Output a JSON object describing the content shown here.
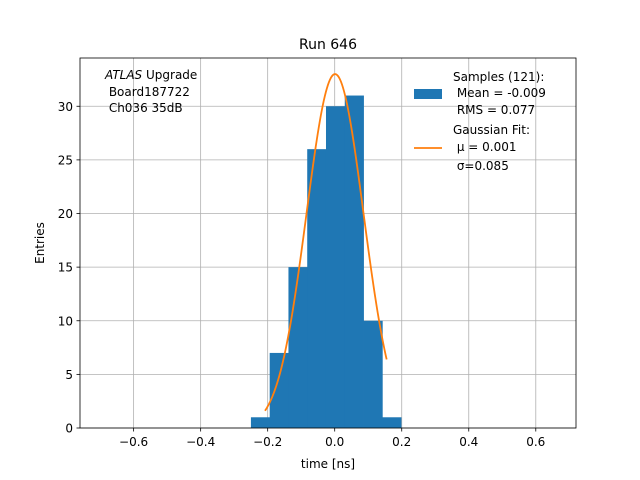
{
  "chart_data": {
    "type": "bar",
    "title": "Run 646",
    "xlabel": "time [ns]",
    "ylabel": "Entries",
    "xlim": [
      -0.76,
      0.72
    ],
    "ylim": [
      0,
      34.5
    ],
    "xticks": [
      -0.6,
      -0.4,
      -0.2,
      0.0,
      0.2,
      0.4,
      0.6
    ],
    "xtick_labels": [
      "−0.6",
      "−0.4",
      "−0.2",
      "0.0",
      "0.2",
      "0.4",
      "0.6"
    ],
    "yticks": [
      0,
      5,
      10,
      15,
      20,
      25,
      30
    ],
    "grid": true,
    "annotation": {
      "line1_italic": "ATLAS",
      "line1_rest": " Upgrade",
      "line2": " Board187722",
      "line3": " Ch036 35dB"
    },
    "histogram": {
      "name": "Samples (121):",
      "color": "#1f77b4",
      "bin_edges": [
        -0.25,
        -0.194,
        -0.138,
        -0.082,
        -0.026,
        0.03,
        0.086,
        0.142,
        0.198
      ],
      "counts": [
        1,
        7,
        15,
        26,
        30,
        31,
        10,
        1
      ]
    },
    "gaussian_fit": {
      "name": "Gaussian Fit:",
      "color": "#ff7f0e",
      "amplitude": 33,
      "mu": 0.001,
      "sigma": 0.085,
      "x_range": [
        -0.208,
        0.155
      ]
    },
    "legend": {
      "placement": "top-right",
      "entries": [
        {
          "label_lines": [
            "Samples (121):",
            " Mean = -0.009",
            " RMS = 0.077"
          ]
        },
        {
          "label_lines": [
            "Gaussian Fit:",
            " μ = 0.001",
            " σ=0.085"
          ]
        }
      ]
    }
  }
}
